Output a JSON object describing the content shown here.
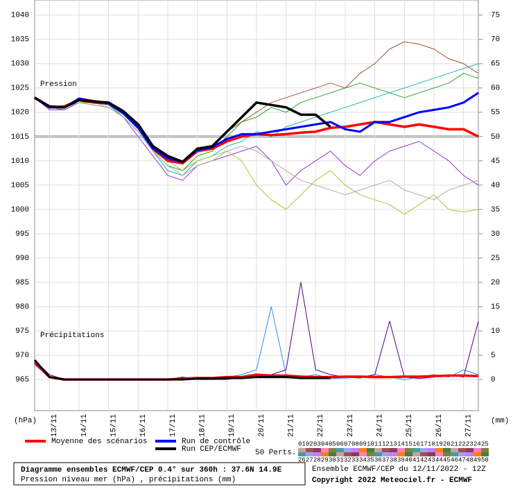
{
  "chart_data": {
    "type": "line",
    "pressure_label": "Pression",
    "precip_label": "Précipitations",
    "y_unit": "(hPa)",
    "y2_unit": "(mm)",
    "x": [
      0,
      12,
      24,
      36,
      48,
      60,
      72,
      84,
      96,
      108,
      120,
      132,
      144,
      156,
      168,
      180,
      192,
      204,
      216,
      228,
      240,
      252,
      264,
      276,
      288,
      300,
      312,
      324,
      336,
      348,
      360
    ],
    "xlim": [
      0,
      360
    ],
    "xticks": [
      {
        "value": 12,
        "label": "13/11"
      },
      {
        "value": 36,
        "label": "14/11"
      },
      {
        "value": 60,
        "label": "15/11"
      },
      {
        "value": 84,
        "label": "16/11"
      },
      {
        "value": 108,
        "label": "17/11"
      },
      {
        "value": 132,
        "label": "18/11"
      },
      {
        "value": 156,
        "label": "19/11"
      },
      {
        "value": 180,
        "label": "20/11"
      },
      {
        "value": 204,
        "label": "21/11"
      },
      {
        "value": 228,
        "label": "22/11"
      },
      {
        "value": 252,
        "label": "23/11"
      },
      {
        "value": 276,
        "label": "24/11"
      },
      {
        "value": 300,
        "label": "25/11"
      },
      {
        "value": 324,
        "label": "26/11"
      },
      {
        "value": 348,
        "label": "27/11"
      }
    ],
    "ylim": [
      958.6,
      1043.1
    ],
    "yticks": [
      965,
      970,
      975,
      980,
      985,
      990,
      995,
      1000,
      1005,
      1010,
      1015,
      1020,
      1025,
      1030,
      1035,
      1040
    ],
    "y2lim": [
      -6.4,
      78.1
    ],
    "y2ticks": [
      0,
      5,
      10,
      15,
      20,
      25,
      30,
      35,
      40,
      45,
      50,
      55,
      60,
      65,
      70,
      75
    ],
    "grid": true,
    "highlight_y": 1015,
    "series": [
      {
        "color": "#2ca02c",
        "values": [
          1023,
          1021,
          1020.5,
          1022,
          1022,
          1021.5,
          1019,
          1016,
          1012,
          1009,
          1008,
          1011,
          1012,
          1015,
          1018,
          1019,
          1021,
          1020,
          1022,
          1023,
          1024,
          1025,
          1026,
          1025,
          1024,
          1023,
          1024,
          1025,
          1026,
          1028,
          1027
        ]
      },
      {
        "color": "#9932cc",
        "values": [
          1023,
          1020.5,
          1020.5,
          1022,
          1021.5,
          1021,
          1019,
          1015,
          1011,
          1007,
          1006,
          1009,
          1010,
          1011,
          1012,
          1013,
          1010,
          1005,
          1008,
          1010,
          1012,
          1009,
          1007,
          1010,
          1012,
          1013,
          1014,
          1012,
          1010,
          1007,
          1005
        ]
      },
      {
        "color": "#a0522d",
        "values": [
          1023,
          1021,
          1021,
          1023,
          1022.5,
          1022,
          1020,
          1017,
          1013,
          1011,
          1010,
          1012,
          1013,
          1016,
          1018,
          1020,
          1022,
          1023,
          1024,
          1025,
          1026,
          1025,
          1028,
          1030,
          1033,
          1034.5,
          1034,
          1033,
          1031,
          1030,
          1028
        ]
      },
      {
        "color": "#20b2aa",
        "values": [
          1023,
          1021,
          1021,
          1022.5,
          1022,
          1021.5,
          1019.5,
          1016.5,
          1012,
          1008,
          1007,
          1010,
          1011,
          1013,
          1014,
          1016,
          1015,
          1017,
          1018,
          1019,
          1020,
          1021,
          1022,
          1023,
          1024,
          1025,
          1026,
          1027,
          1028,
          1029,
          1030
        ]
      },
      {
        "color": "#9acd32",
        "values": [
          1023,
          1021,
          1021,
          1022,
          1022,
          1021,
          1019,
          1016,
          1012,
          1010,
          1008,
          1010,
          1011,
          1012,
          1010,
          1005,
          1002,
          1000,
          1003,
          1006,
          1008,
          1005,
          1003,
          1002,
          1001,
          999,
          1001,
          1003,
          1000,
          999.5,
          1000
        ]
      },
      {
        "color": "#a9a9a9",
        "values": [
          1023,
          1021,
          1021,
          1022,
          1021.5,
          1021,
          1019,
          1016,
          1012,
          1009,
          1007,
          1009,
          1010,
          1012,
          1013,
          1012,
          1010,
          1008,
          1006,
          1005,
          1004,
          1003,
          1004,
          1005,
          1006,
          1004,
          1003,
          1002,
          1004,
          1005,
          1006
        ]
      },
      {
        "color": "#1e90ff",
        "axis": "y2",
        "values": [
          3,
          0.5,
          0,
          0,
          0,
          0,
          0,
          0,
          0,
          0,
          0,
          0,
          0,
          0.5,
          1,
          2,
          15,
          1,
          0.5,
          1,
          0.2,
          0.3,
          0.5,
          1,
          0.5,
          0,
          0.5,
          1,
          0.5,
          2,
          1
        ]
      },
      {
        "color": "#4b0082",
        "axis": "y2",
        "values": [
          4,
          1,
          0,
          0,
          0,
          0,
          0,
          0,
          0,
          0,
          0.5,
          0,
          0,
          0,
          0.5,
          1,
          1,
          2,
          20,
          2,
          1,
          0.5,
          0.3,
          1,
          12,
          0.5,
          0.2,
          0.5,
          1,
          0.5,
          12
        ]
      },
      {
        "name": "Moyenne des scénarios",
        "color": "#ff0000",
        "width": 3.5,
        "values": [
          1023,
          1021,
          1021.2,
          1022.5,
          1022,
          1021.8,
          1020,
          1017,
          1012.5,
          1010,
          1009.5,
          1012,
          1012.5,
          1014,
          1015,
          1015.5,
          1015.3,
          1015.5,
          1015.8,
          1016,
          1016.8,
          1017,
          1017.5,
          1018,
          1017.5,
          1017,
          1017.5,
          1017,
          1016.5,
          1016.5,
          1015
        ]
      },
      {
        "name": "Run de contrôle",
        "color": "#0000ff",
        "width": 3,
        "values": [
          1023,
          1021,
          1021,
          1022.8,
          1022.2,
          1021.8,
          1019.8,
          1016.8,
          1012.5,
          1010.5,
          1009.8,
          1012.2,
          1012.8,
          1014.5,
          1015.5,
          1015.5,
          1016,
          1016.5,
          1017,
          1017.5,
          1018,
          1016.5,
          1016,
          1018,
          1018,
          1019,
          1020,
          1020.5,
          1021,
          1022,
          1024
        ]
      },
      {
        "name": "Run CEP/ECMWF",
        "color": "#000000",
        "width": 3.5,
        "values": [
          1023,
          1021.2,
          1021,
          1022.5,
          1022.2,
          1022,
          1020.2,
          1017.5,
          1013,
          1011,
          1009.8,
          1012.5,
          1013,
          1016,
          1019,
          1022,
          1021.5,
          1021,
          1019.5,
          1019.5,
          1017,
          null,
          null,
          null,
          null,
          null,
          null,
          null,
          null,
          null,
          null
        ]
      },
      {
        "color": "#ff0000",
        "axis": "y2",
        "width": 3.5,
        "values": [
          3.5,
          0.5,
          0,
          0,
          0,
          0,
          0,
          0,
          0,
          0,
          0.2,
          0.3,
          0.3,
          0.5,
          0.5,
          1,
          0.8,
          0.8,
          0.6,
          0.5,
          0.5,
          0.6,
          0.6,
          0.5,
          0.5,
          0.6,
          0.6,
          0.7,
          0.8,
          0.8,
          0.7
        ]
      },
      {
        "color": "#000000",
        "axis": "y2",
        "width": 3,
        "values": [
          4,
          0.5,
          0,
          0,
          0,
          0,
          0,
          0,
          0,
          0,
          0,
          0.2,
          0.2,
          0.3,
          0.3,
          0.5,
          0.5,
          0.5,
          0.3,
          0.3,
          0.3,
          null,
          null,
          null,
          null,
          null,
          null,
          null,
          null,
          null,
          null
        ]
      }
    ],
    "perts_label": "50 Perts.",
    "key_row1": [
      "01",
      "02",
      "03",
      "04",
      "05",
      "06",
      "07",
      "08",
      "09",
      "10",
      "11",
      "12",
      "13",
      "14",
      "15",
      "16",
      "17",
      "18",
      "19",
      "20",
      "21",
      "22",
      "23",
      "24",
      "25"
    ],
    "key_row2": [
      "26",
      "27",
      "28",
      "29",
      "30",
      "31",
      "32",
      "33",
      "34",
      "35",
      "36",
      "37",
      "38",
      "39",
      "40",
      "41",
      "42",
      "43",
      "44",
      "45",
      "46",
      "47",
      "48",
      "49",
      "50"
    ],
    "key_colors": [
      "#c8a0a0",
      "#a05050",
      "#8b3a62",
      "#ff80c0",
      "#808040",
      "#40a0a0",
      "#a0a0ff",
      "#c080ff",
      "#ff8000",
      "#408040"
    ],
    "title": "Diagramme ensembles ECMWF/CEP 0.4° sur 360h : 37.6N 14.9E",
    "subtitle": "Pression niveau mer (hPa) , précipitations (mm)",
    "run_info": "Ensemble ECMWF/CEP du 12/11/2022 - 12Z",
    "copyright": "Copyright 2022 Meteociel.fr - ECMWF"
  }
}
